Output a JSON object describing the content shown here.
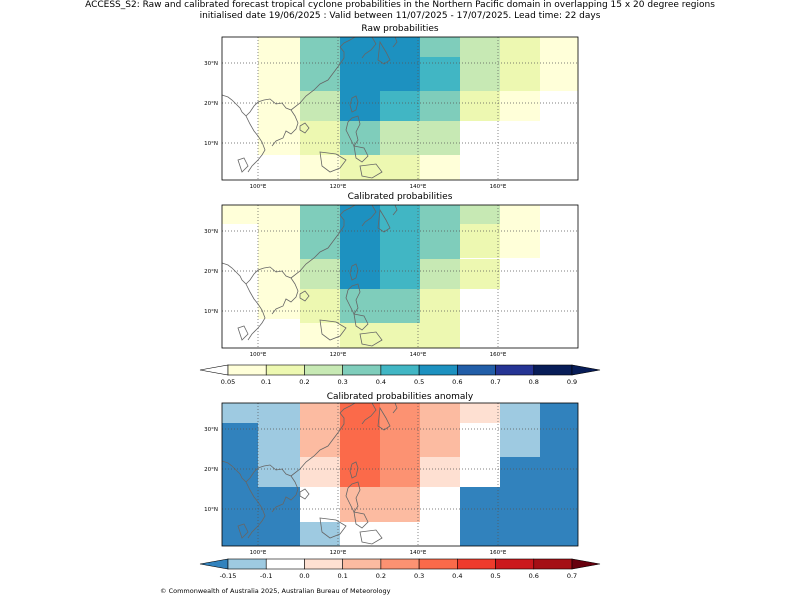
{
  "header": {
    "line1": "ACCESS_S2: Raw and calibrated forecast tropical cyclone probabilities in the Northern Pacific domain in overlapping 15 x 20 degree regions",
    "line2": "initialised date 19/06/2025 :  Valid between 11/07/2025 - 17/07/2025. Lead time: 22 days"
  },
  "panels": {
    "raw": {
      "title": "Raw probabilities"
    },
    "calibrated": {
      "title": "Calibrated probabilities"
    },
    "anomaly": {
      "title": "Calibrated probabilities anomaly"
    }
  },
  "axes": {
    "lon_labels": [
      "100°E",
      "120°E",
      "140°E",
      "160°E"
    ],
    "lat_labels": [
      "30°N",
      "20°N",
      "10°N"
    ]
  },
  "colorbars": {
    "probability": {
      "ticks": [
        "0.05",
        "0.1",
        "0.2",
        "0.3",
        "0.4",
        "0.5",
        "0.6",
        "0.7",
        "0.8",
        "0.9"
      ],
      "colors": [
        "#ffffd9",
        "#edf8b1",
        "#c7e9b4",
        "#7fcdbb",
        "#41b6c4",
        "#1d91c0",
        "#225ea8",
        "#253494",
        "#081d58"
      ],
      "under": "#ffffff",
      "over": "#081d58"
    },
    "anomaly": {
      "ticks": [
        "-0.15",
        "-0.1",
        "0.0",
        "0.1",
        "0.2",
        "0.3",
        "0.4",
        "0.5",
        "0.6",
        "0.7"
      ],
      "colors": [
        "#9ecae1",
        "#ffffff",
        "#fee0d2",
        "#fcbba1",
        "#fc9272",
        "#fb6a4a",
        "#ef3b2c",
        "#cb181d",
        "#a50f15"
      ],
      "under": "#3182bd",
      "over": "#67000d"
    }
  },
  "footer": {
    "text": "© Commonwealth of Australia 2025, Australian Bureau of Meteorology"
  }
}
